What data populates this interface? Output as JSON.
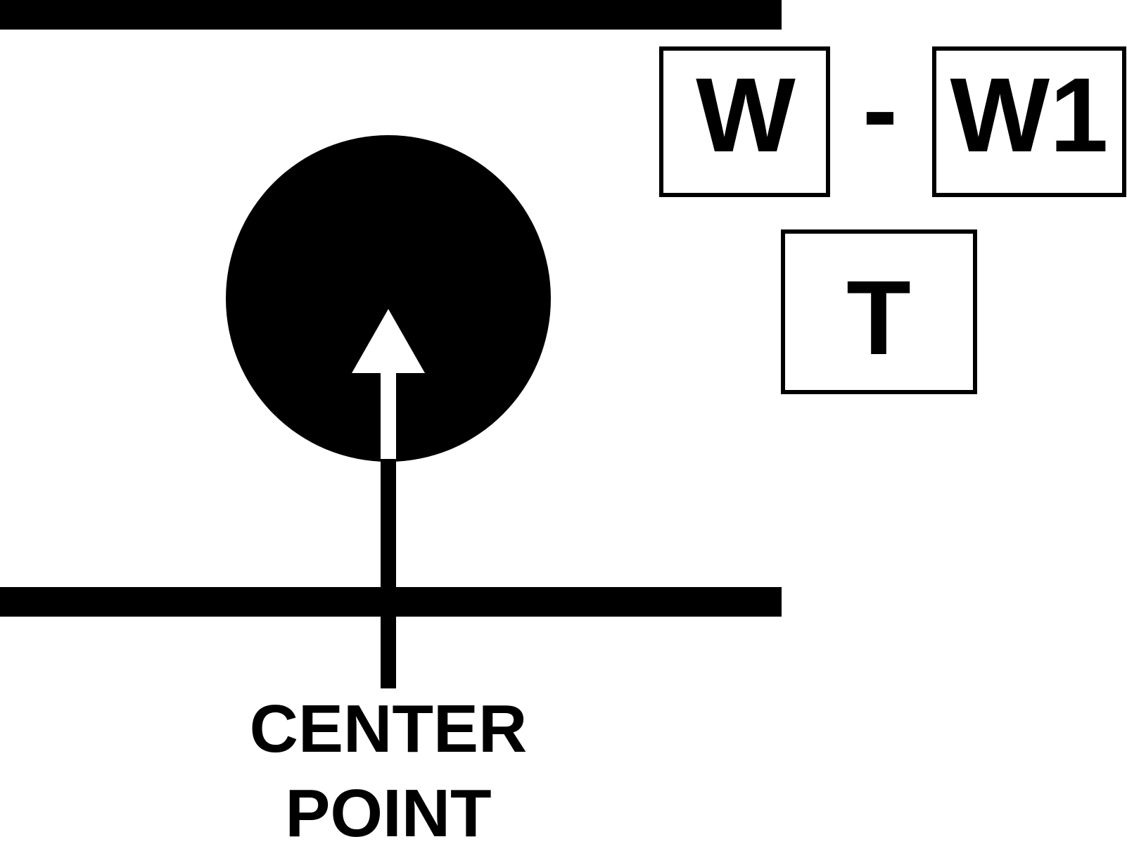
{
  "labels": {
    "box_w": "W",
    "dash": "-",
    "box_w1": "W1",
    "box_t": "T",
    "center_line1": "CENTER",
    "center_line2": "POINT"
  },
  "colors": {
    "ink": "#000000",
    "paper": "#ffffff"
  },
  "icons": {
    "marker": "filled-circle-with-up-arrow"
  }
}
